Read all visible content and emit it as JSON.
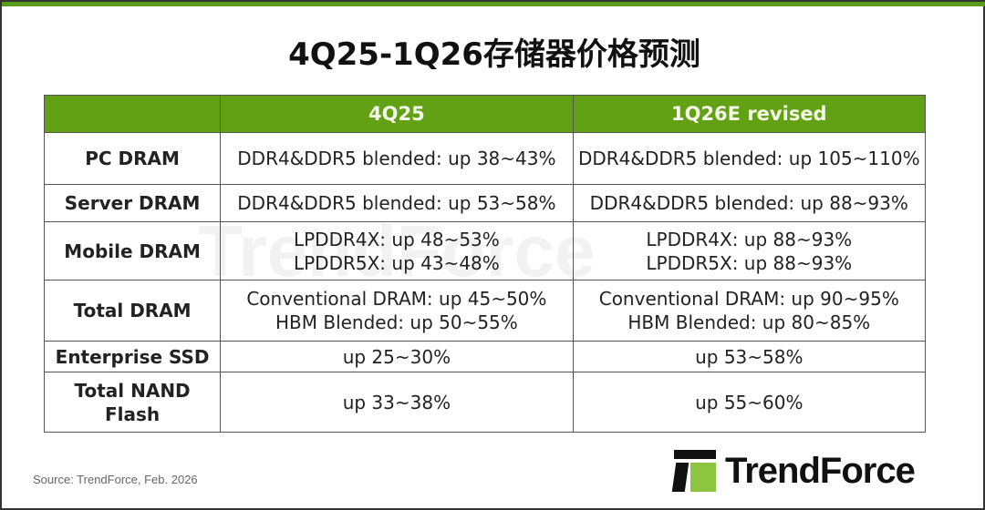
{
  "title": "4Q25-1Q26存储器价格预测",
  "table": {
    "headers": [
      "",
      "4Q25",
      "1Q26E revised"
    ],
    "rows": [
      {
        "label": "PC DRAM",
        "q4": [
          "DDR4&DDR5 blended: up 38~43%"
        ],
        "q1": [
          "DDR4&DDR5 blended: up 105~110%"
        ]
      },
      {
        "label": "Server DRAM",
        "q4": [
          "DDR4&DDR5 blended: up 53~58%"
        ],
        "q1": [
          "DDR4&DDR5 blended: up 88~93%"
        ]
      },
      {
        "label": "Mobile DRAM",
        "q4": [
          "LPDDR4X: up 48~53%",
          "LPDDR5X: up 43~48%"
        ],
        "q1": [
          "LPDDR4X: up 88~93%",
          "LPDDR5X: up 88~93%"
        ]
      },
      {
        "label": "Total DRAM",
        "q4": [
          "Conventional DRAM: up 45~50%",
          "HBM Blended: up 50~55%"
        ],
        "q1": [
          "Conventional DRAM: up 90~95%",
          "HBM Blended: up 80~85%"
        ]
      },
      {
        "label": "Enterprise SSD",
        "q4": [
          "up 25~30%"
        ],
        "q1": [
          "up 53~58%"
        ]
      },
      {
        "label": "Total NAND Flash",
        "q4": [
          "up 33~38%"
        ],
        "q1": [
          "up 55~60%"
        ]
      }
    ]
  },
  "source": "Source: TrendForce, Feb. 2026",
  "logo": {
    "text": "TrendForce",
    "watermark": "TrendForce"
  },
  "colors": {
    "header_green": "#62a014",
    "logo_green": "#8cc63f"
  }
}
